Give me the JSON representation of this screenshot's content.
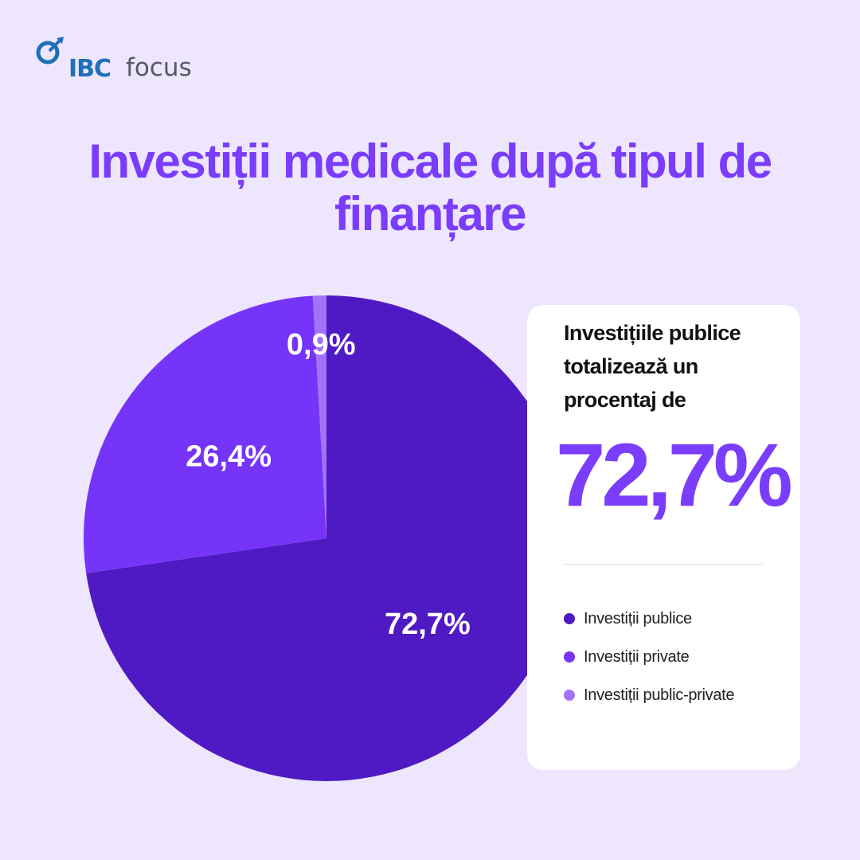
{
  "logo": {
    "brand": "IBC",
    "sub": "focus",
    "colors": {
      "brand": "#1e6fb9",
      "sub": "#555a63"
    }
  },
  "chart_data": {
    "type": "pie",
    "title": "Investiții medicale după tipul de finanțare",
    "categories": [
      "Investiții publice",
      "Investiții private",
      "Investiții public-private"
    ],
    "values": [
      72.7,
      26.4,
      0.9
    ],
    "value_labels": [
      "72,7%",
      "26,4%",
      "0,9%"
    ],
    "colors": [
      "#4f1ac3",
      "#7534f8",
      "#a273f9"
    ],
    "legend_position": "right"
  },
  "callout": {
    "lead": "Investițiile publice totalizează un procentaj de",
    "highlight": "72,7%"
  },
  "colors": {
    "background": "#eee6fd",
    "accent": "#7a3dfb",
    "card": "#ffffff"
  }
}
